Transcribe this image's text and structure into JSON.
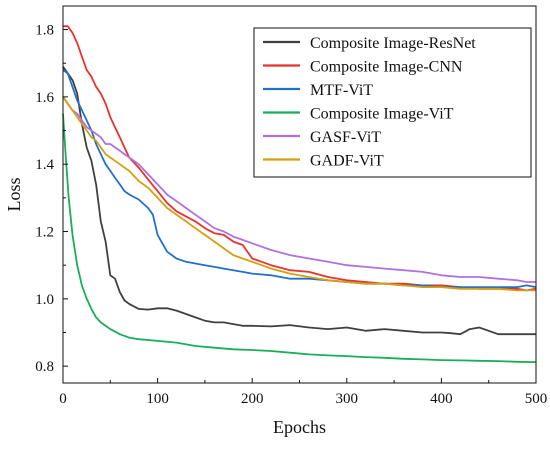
{
  "chart_data": {
    "type": "line",
    "title": "",
    "xlabel": "Epochs",
    "ylabel": "Loss",
    "xlim": [
      0,
      500
    ],
    "ylim": [
      0.75,
      1.87
    ],
    "xticks": [
      0,
      100,
      200,
      300,
      400,
      500
    ],
    "yticks": [
      0.8,
      1.0,
      1.2,
      1.4,
      1.6,
      1.8
    ],
    "xtick_labels": [
      "0",
      "100",
      "200",
      "300",
      "400",
      "500"
    ],
    "ytick_labels": [
      "0.8",
      "1.0",
      "1.2",
      "1.4",
      "1.6",
      "1.8"
    ],
    "grid": false,
    "legend_position": "top-right",
    "series": [
      {
        "name": "Composite Image-ResNet",
        "color": "#404040",
        "points": [
          [
            0,
            1.69
          ],
          [
            5,
            1.67
          ],
          [
            10,
            1.65
          ],
          [
            15,
            1.61
          ],
          [
            20,
            1.52
          ],
          [
            25,
            1.45
          ],
          [
            30,
            1.41
          ],
          [
            35,
            1.34
          ],
          [
            40,
            1.23
          ],
          [
            45,
            1.17
          ],
          [
            50,
            1.07
          ],
          [
            55,
            1.06
          ],
          [
            60,
            1.02
          ],
          [
            65,
            0.995
          ],
          [
            70,
            0.985
          ],
          [
            80,
            0.97
          ],
          [
            90,
            0.968
          ],
          [
            100,
            0.972
          ],
          [
            110,
            0.972
          ],
          [
            120,
            0.965
          ],
          [
            130,
            0.955
          ],
          [
            140,
            0.945
          ],
          [
            150,
            0.935
          ],
          [
            160,
            0.93
          ],
          [
            170,
            0.93
          ],
          [
            180,
            0.925
          ],
          [
            190,
            0.92
          ],
          [
            200,
            0.92
          ],
          [
            220,
            0.918
          ],
          [
            240,
            0.922
          ],
          [
            260,
            0.915
          ],
          [
            280,
            0.91
          ],
          [
            300,
            0.915
          ],
          [
            320,
            0.905
          ],
          [
            340,
            0.91
          ],
          [
            360,
            0.905
          ],
          [
            380,
            0.9
          ],
          [
            400,
            0.9
          ],
          [
            410,
            0.898
          ],
          [
            420,
            0.895
          ],
          [
            430,
            0.91
          ],
          [
            440,
            0.915
          ],
          [
            450,
            0.905
          ],
          [
            460,
            0.895
          ],
          [
            470,
            0.895
          ],
          [
            480,
            0.895
          ],
          [
            490,
            0.895
          ],
          [
            500,
            0.895
          ]
        ]
      },
      {
        "name": "Composite Image-CNN",
        "color": "#e8322c",
        "points": [
          [
            0,
            1.81
          ],
          [
            5,
            1.81
          ],
          [
            10,
            1.79
          ],
          [
            15,
            1.76
          ],
          [
            20,
            1.72
          ],
          [
            25,
            1.68
          ],
          [
            30,
            1.66
          ],
          [
            35,
            1.63
          ],
          [
            40,
            1.61
          ],
          [
            45,
            1.58
          ],
          [
            50,
            1.54
          ],
          [
            55,
            1.51
          ],
          [
            60,
            1.48
          ],
          [
            65,
            1.45
          ],
          [
            70,
            1.42
          ],
          [
            80,
            1.39
          ],
          [
            90,
            1.355
          ],
          [
            100,
            1.32
          ],
          [
            110,
            1.285
          ],
          [
            120,
            1.26
          ],
          [
            130,
            1.245
          ],
          [
            140,
            1.23
          ],
          [
            150,
            1.21
          ],
          [
            160,
            1.195
          ],
          [
            170,
            1.19
          ],
          [
            180,
            1.17
          ],
          [
            190,
            1.16
          ],
          [
            200,
            1.12
          ],
          [
            210,
            1.11
          ],
          [
            220,
            1.1
          ],
          [
            240,
            1.085
          ],
          [
            260,
            1.08
          ],
          [
            280,
            1.065
          ],
          [
            300,
            1.055
          ],
          [
            320,
            1.05
          ],
          [
            340,
            1.045
          ],
          [
            360,
            1.045
          ],
          [
            380,
            1.04
          ],
          [
            400,
            1.04
          ],
          [
            420,
            1.035
          ],
          [
            440,
            1.03
          ],
          [
            460,
            1.03
          ],
          [
            480,
            1.03
          ],
          [
            490,
            1.025
          ],
          [
            500,
            1.03
          ]
        ]
      },
      {
        "name": "MTF-ViT",
        "color": "#2070cc",
        "points": [
          [
            0,
            1.68
          ],
          [
            5,
            1.67
          ],
          [
            10,
            1.63
          ],
          [
            15,
            1.59
          ],
          [
            20,
            1.56
          ],
          [
            25,
            1.53
          ],
          [
            30,
            1.5
          ],
          [
            35,
            1.46
          ],
          [
            40,
            1.43
          ],
          [
            45,
            1.4
          ],
          [
            50,
            1.38
          ],
          [
            55,
            1.36
          ],
          [
            60,
            1.34
          ],
          [
            65,
            1.32
          ],
          [
            70,
            1.31
          ],
          [
            80,
            1.295
          ],
          [
            90,
            1.27
          ],
          [
            95,
            1.25
          ],
          [
            100,
            1.19
          ],
          [
            110,
            1.14
          ],
          [
            120,
            1.12
          ],
          [
            130,
            1.11
          ],
          [
            140,
            1.105
          ],
          [
            150,
            1.1
          ],
          [
            160,
            1.095
          ],
          [
            170,
            1.09
          ],
          [
            180,
            1.085
          ],
          [
            190,
            1.08
          ],
          [
            200,
            1.075
          ],
          [
            220,
            1.07
          ],
          [
            240,
            1.06
          ],
          [
            260,
            1.06
          ],
          [
            280,
            1.055
          ],
          [
            300,
            1.05
          ],
          [
            320,
            1.045
          ],
          [
            340,
            1.045
          ],
          [
            360,
            1.04
          ],
          [
            380,
            1.04
          ],
          [
            400,
            1.035
          ],
          [
            420,
            1.035
          ],
          [
            440,
            1.035
          ],
          [
            460,
            1.035
          ],
          [
            480,
            1.035
          ],
          [
            490,
            1.04
          ],
          [
            500,
            1.035
          ]
        ]
      },
      {
        "name": "Composite Image-ViT",
        "color": "#1aae5a",
        "points": [
          [
            0,
            1.55
          ],
          [
            3,
            1.42
          ],
          [
            6,
            1.3
          ],
          [
            10,
            1.19
          ],
          [
            15,
            1.1
          ],
          [
            20,
            1.04
          ],
          [
            25,
            1.0
          ],
          [
            30,
            0.97
          ],
          [
            35,
            0.945
          ],
          [
            40,
            0.93
          ],
          [
            50,
            0.91
          ],
          [
            60,
            0.895
          ],
          [
            70,
            0.885
          ],
          [
            80,
            0.88
          ],
          [
            100,
            0.875
          ],
          [
            120,
            0.87
          ],
          [
            140,
            0.86
          ],
          [
            160,
            0.855
          ],
          [
            180,
            0.85
          ],
          [
            200,
            0.848
          ],
          [
            220,
            0.845
          ],
          [
            240,
            0.84
          ],
          [
            260,
            0.835
          ],
          [
            280,
            0.832
          ],
          [
            300,
            0.83
          ],
          [
            320,
            0.827
          ],
          [
            340,
            0.825
          ],
          [
            360,
            0.822
          ],
          [
            380,
            0.82
          ],
          [
            400,
            0.818
          ],
          [
            420,
            0.817
          ],
          [
            440,
            0.816
          ],
          [
            460,
            0.815
          ],
          [
            480,
            0.813
          ],
          [
            500,
            0.812
          ]
        ]
      },
      {
        "name": "GASF-ViT",
        "color": "#b070e0",
        "points": [
          [
            0,
            1.6
          ],
          [
            5,
            1.58
          ],
          [
            10,
            1.56
          ],
          [
            15,
            1.55
          ],
          [
            20,
            1.53
          ],
          [
            25,
            1.51
          ],
          [
            30,
            1.5
          ],
          [
            35,
            1.49
          ],
          [
            40,
            1.48
          ],
          [
            45,
            1.46
          ],
          [
            50,
            1.46
          ],
          [
            55,
            1.45
          ],
          [
            60,
            1.44
          ],
          [
            65,
            1.43
          ],
          [
            70,
            1.42
          ],
          [
            80,
            1.4
          ],
          [
            90,
            1.37
          ],
          [
            100,
            1.34
          ],
          [
            110,
            1.31
          ],
          [
            120,
            1.29
          ],
          [
            130,
            1.27
          ],
          [
            140,
            1.25
          ],
          [
            150,
            1.23
          ],
          [
            160,
            1.21
          ],
          [
            170,
            1.2
          ],
          [
            180,
            1.185
          ],
          [
            190,
            1.175
          ],
          [
            200,
            1.165
          ],
          [
            210,
            1.155
          ],
          [
            220,
            1.145
          ],
          [
            240,
            1.13
          ],
          [
            260,
            1.12
          ],
          [
            280,
            1.11
          ],
          [
            300,
            1.1
          ],
          [
            320,
            1.095
          ],
          [
            340,
            1.09
          ],
          [
            360,
            1.085
          ],
          [
            380,
            1.08
          ],
          [
            400,
            1.07
          ],
          [
            420,
            1.065
          ],
          [
            440,
            1.065
          ],
          [
            460,
            1.06
          ],
          [
            480,
            1.055
          ],
          [
            490,
            1.05
          ],
          [
            500,
            1.05
          ]
        ]
      },
      {
        "name": "GADF-ViT",
        "color": "#d4a010",
        "points": [
          [
            0,
            1.6
          ],
          [
            5,
            1.58
          ],
          [
            10,
            1.56
          ],
          [
            15,
            1.54
          ],
          [
            20,
            1.52
          ],
          [
            25,
            1.5
          ],
          [
            30,
            1.48
          ],
          [
            35,
            1.47
          ],
          [
            40,
            1.45
          ],
          [
            45,
            1.43
          ],
          [
            50,
            1.42
          ],
          [
            55,
            1.41
          ],
          [
            60,
            1.4
          ],
          [
            65,
            1.39
          ],
          [
            70,
            1.38
          ],
          [
            80,
            1.35
          ],
          [
            90,
            1.33
          ],
          [
            100,
            1.3
          ],
          [
            110,
            1.27
          ],
          [
            120,
            1.25
          ],
          [
            130,
            1.23
          ],
          [
            140,
            1.21
          ],
          [
            150,
            1.19
          ],
          [
            160,
            1.17
          ],
          [
            170,
            1.15
          ],
          [
            180,
            1.13
          ],
          [
            190,
            1.12
          ],
          [
            200,
            1.11
          ],
          [
            210,
            1.1
          ],
          [
            220,
            1.09
          ],
          [
            240,
            1.075
          ],
          [
            260,
            1.065
          ],
          [
            280,
            1.055
          ],
          [
            300,
            1.05
          ],
          [
            320,
            1.045
          ],
          [
            340,
            1.045
          ],
          [
            360,
            1.04
          ],
          [
            380,
            1.035
          ],
          [
            400,
            1.035
          ],
          [
            420,
            1.03
          ],
          [
            440,
            1.03
          ],
          [
            460,
            1.03
          ],
          [
            480,
            1.025
          ],
          [
            490,
            1.025
          ],
          [
            500,
            1.025
          ]
        ]
      }
    ]
  }
}
